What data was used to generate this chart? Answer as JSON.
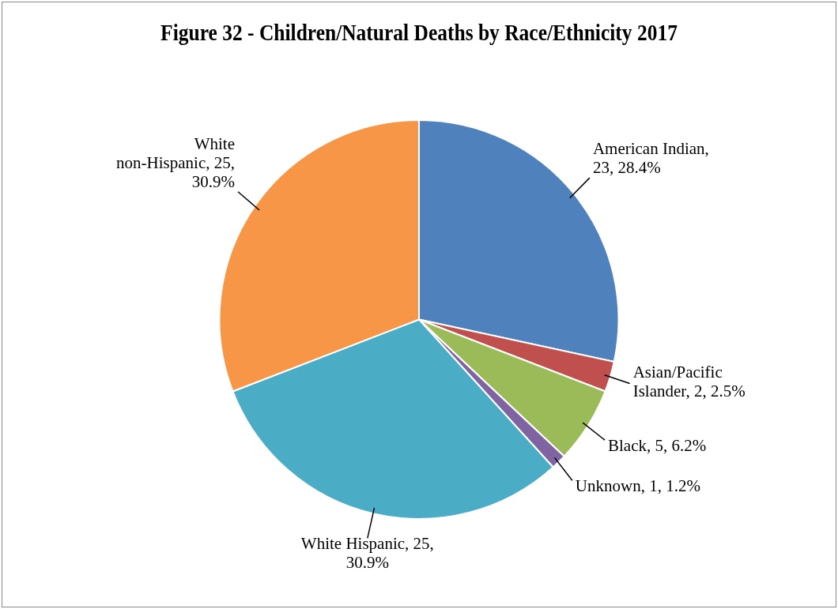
{
  "chart_data": {
    "type": "pie",
    "title": "Figure 32 - Children/Natural Deaths by Race/Ethnicity 2017",
    "categories": [
      "American Indian",
      "Asian/Pacific Islander",
      "Black",
      "Unknown",
      "White Hispanic",
      "White non-Hispanic"
    ],
    "values": [
      23,
      2,
      5,
      1,
      25,
      25
    ],
    "value_labels": [
      ", 23, 28.4%",
      ", 2, 2.5%",
      ", 5, 6.2%",
      ", 1, 1.2%",
      ", 25, 30.9%",
      ", 25, 30.9%"
    ],
    "colors": [
      "#4f81bd",
      "#c0504d",
      "#9bbb59",
      "#8064a2",
      "#4bacc6",
      "#f79646"
    ],
    "legend": false
  }
}
